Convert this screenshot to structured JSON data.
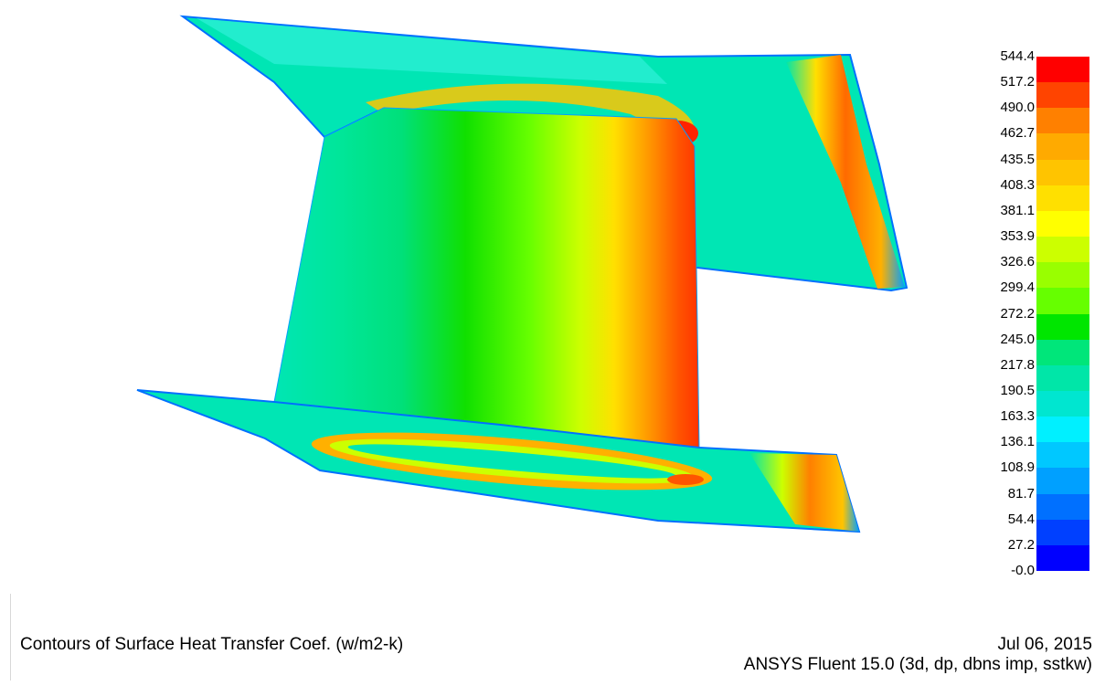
{
  "colorbar": {
    "labels": [
      "544.4",
      "517.2",
      "490.0",
      "462.7",
      "435.5",
      "408.3",
      "381.1",
      "353.9",
      "326.6",
      "299.4",
      "272.2",
      "245.0",
      "217.8",
      "190.5",
      "163.3",
      "136.1",
      "108.9",
      "81.7",
      "54.4",
      "27.2",
      "-0.0"
    ],
    "colors": [
      "#ff0000",
      "#ff4400",
      "#ff8000",
      "#ffaa00",
      "#ffc400",
      "#ffe000",
      "#ffff00",
      "#ccff00",
      "#99ff00",
      "#66ff00",
      "#00e600",
      "#00e67a",
      "#00e6a8",
      "#00e6d0",
      "#00f0ff",
      "#00c8ff",
      "#00a0ff",
      "#0070ff",
      "#0040ff",
      "#0000ff"
    ]
  },
  "footer": {
    "caption": "Contours of Surface Heat Transfer Coef. (w/m2-k)",
    "date": "Jul 06, 2015",
    "software": "ANSYS Fluent 15.0 (3d, dp, dbns imp, sstkw)"
  }
}
